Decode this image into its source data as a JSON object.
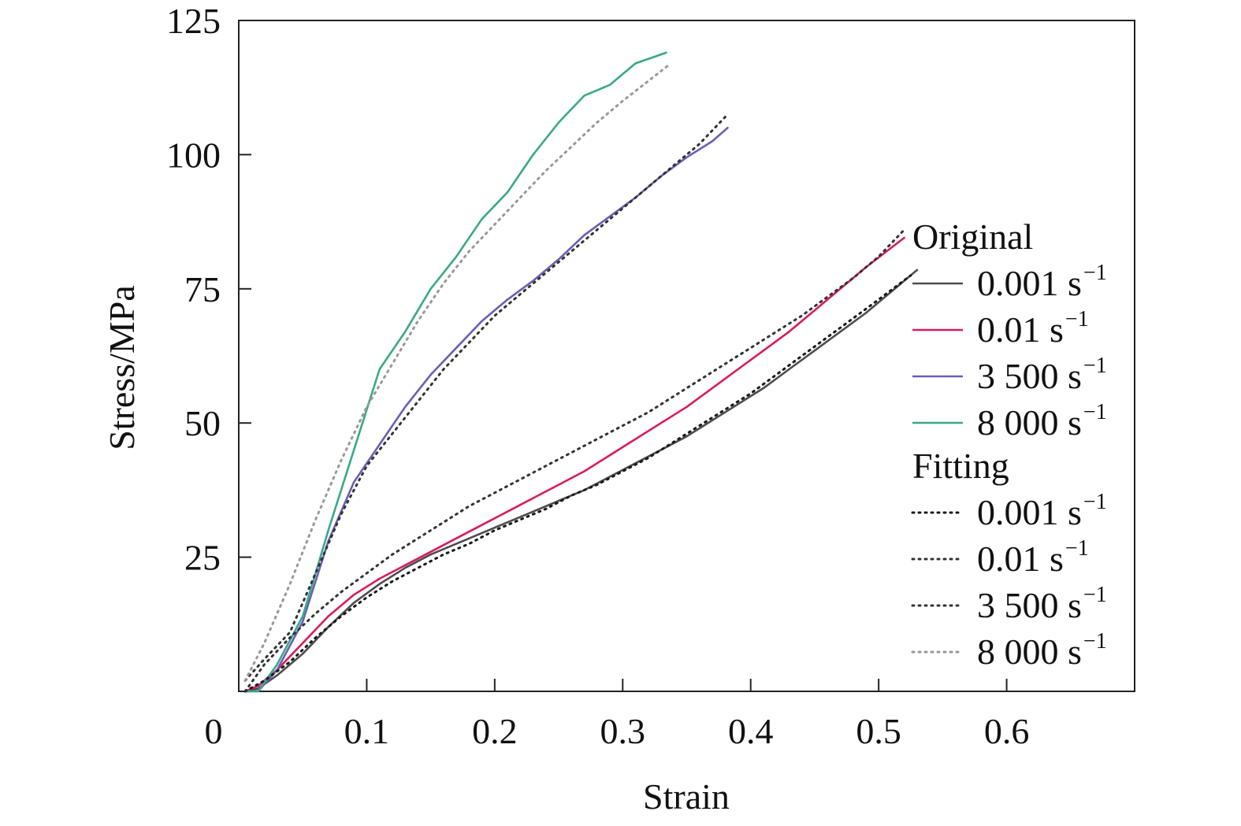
{
  "chart_data": {
    "type": "line",
    "xlabel": "Strain",
    "ylabel": "Stress/MPa",
    "xlim": [
      0,
      0.7
    ],
    "ylim": [
      0,
      125
    ],
    "x_ticks": [
      "0",
      "0.1",
      "0.2",
      "0.3",
      "0.4",
      "0.5",
      "0.6"
    ],
    "x_tick_values": [
      0,
      0.1,
      0.2,
      0.3,
      0.4,
      0.5,
      0.6
    ],
    "y_ticks": [
      "25",
      "50",
      "75",
      "100",
      "125"
    ],
    "y_tick_values": [
      25,
      50,
      75,
      100,
      125
    ],
    "grid": false,
    "legend_position": "right",
    "legend": {
      "original_title": "Original",
      "fitting_title": "Fitting",
      "original_entries": [
        {
          "text": "0.001 s",
          "sup": "−1"
        },
        {
          "text": "0.01 s",
          "sup": "−1"
        },
        {
          "text": "3 500 s",
          "sup": "−1"
        },
        {
          "text": "8 000 s",
          "sup": "−1"
        }
      ],
      "fitting_entries": [
        {
          "text": "0.001 s",
          "sup": "−1"
        },
        {
          "text": "0.01 s",
          "sup": "−1"
        },
        {
          "text": "3 500 s",
          "sup": "−1"
        },
        {
          "text": "8 000 s",
          "sup": "−1"
        }
      ]
    },
    "series": [
      {
        "group": "Original",
        "rate": "0.001 s−1",
        "style": "solid",
        "color": "#4d4d4d",
        "x": [
          0.005,
          0.015,
          0.03,
          0.05,
          0.07,
          0.09,
          0.11,
          0.13,
          0.15,
          0.17,
          0.19,
          0.21,
          0.23,
          0.25,
          0.27,
          0.29,
          0.31,
          0.33,
          0.35,
          0.37,
          0.39,
          0.41,
          0.43,
          0.45,
          0.47,
          0.49,
          0.51,
          0.53
        ],
        "y": [
          0,
          0.5,
          3,
          7,
          12,
          16.5,
          20,
          23,
          25.5,
          27.5,
          29.5,
          31.5,
          33.5,
          35.5,
          37.5,
          40,
          42.5,
          45,
          47.5,
          50.5,
          53.5,
          56.5,
          60,
          63.5,
          67,
          70.5,
          74.5,
          78.5
        ]
      },
      {
        "group": "Original",
        "rate": "0.01 s−1",
        "style": "solid",
        "color": "#d81b60",
        "x": [
          0.005,
          0.015,
          0.03,
          0.05,
          0.07,
          0.09,
          0.11,
          0.13,
          0.15,
          0.17,
          0.19,
          0.21,
          0.23,
          0.25,
          0.27,
          0.29,
          0.31,
          0.33,
          0.35,
          0.37,
          0.39,
          0.41,
          0.43,
          0.45,
          0.47,
          0.49,
          0.52
        ],
        "y": [
          0,
          1,
          4,
          9,
          14,
          18,
          21,
          23.5,
          26,
          28.5,
          31,
          33.5,
          36,
          38.5,
          41,
          44,
          47,
          50,
          53,
          56.5,
          60,
          63.5,
          67,
          71,
          75,
          79,
          84.5
        ]
      },
      {
        "group": "Original",
        "rate": "3 500 s−1",
        "style": "solid",
        "color": "#6a5fb5",
        "x": [
          0.005,
          0.015,
          0.03,
          0.05,
          0.07,
          0.09,
          0.11,
          0.13,
          0.15,
          0.17,
          0.19,
          0.21,
          0.23,
          0.25,
          0.27,
          0.29,
          0.31,
          0.33,
          0.35,
          0.37,
          0.382
        ],
        "y": [
          0,
          0,
          4,
          13,
          28,
          39,
          46,
          53,
          59,
          64,
          69,
          73,
          76.5,
          80.5,
          85,
          88.5,
          92,
          96,
          99.5,
          102.5,
          105
        ]
      },
      {
        "group": "Original",
        "rate": "8 000 s−1",
        "style": "solid",
        "color": "#3aa88a",
        "x": [
          0.005,
          0.015,
          0.03,
          0.05,
          0.07,
          0.09,
          0.11,
          0.13,
          0.15,
          0.17,
          0.19,
          0.21,
          0.23,
          0.25,
          0.27,
          0.29,
          0.31,
          0.334
        ],
        "y": [
          0,
          0,
          5,
          14,
          30,
          45,
          60,
          67,
          75,
          81,
          88,
          93,
          100,
          106,
          111,
          113,
          117,
          119
        ]
      },
      {
        "group": "Fitting",
        "rate": "0.001 s−1",
        "style": "dotted",
        "color": "#1a1a1a",
        "x": [
          0.005,
          0.02,
          0.04,
          0.06,
          0.08,
          0.1,
          0.12,
          0.14,
          0.16,
          0.18,
          0.2,
          0.22,
          0.24,
          0.26,
          0.28,
          0.3,
          0.32,
          0.34,
          0.36,
          0.38,
          0.4,
          0.42,
          0.44,
          0.46,
          0.48,
          0.5,
          0.525
        ],
        "y": [
          0,
          2,
          5.5,
          10,
          14,
          17.5,
          20.5,
          23,
          25.5,
          27.5,
          30,
          32,
          34,
          36.5,
          38.5,
          41,
          43.5,
          46.5,
          49.5,
          52.5,
          55.5,
          59,
          62.5,
          66,
          69.5,
          73,
          77.5
        ]
      },
      {
        "group": "Fitting",
        "rate": "0.01 s−1",
        "style": "dotted",
        "color": "#333333",
        "x": [
          0.005,
          0.02,
          0.04,
          0.06,
          0.08,
          0.1,
          0.12,
          0.14,
          0.16,
          0.18,
          0.2,
          0.22,
          0.24,
          0.26,
          0.28,
          0.3,
          0.32,
          0.34,
          0.36,
          0.38,
          0.4,
          0.42,
          0.44,
          0.46,
          0.48,
          0.5,
          0.52
        ],
        "y": [
          0,
          5,
          10,
          14.5,
          18.5,
          22,
          25.5,
          28.5,
          31.5,
          34.5,
          37,
          39.5,
          42,
          44.5,
          47,
          49.5,
          52,
          55,
          58,
          61,
          64,
          67,
          70,
          73.5,
          77,
          81,
          86
        ]
      },
      {
        "group": "Fitting",
        "rate": "3 500 s−1",
        "style": "dotted",
        "color": "#333333",
        "x": [
          0.005,
          0.02,
          0.04,
          0.06,
          0.08,
          0.1,
          0.12,
          0.14,
          0.16,
          0.18,
          0.2,
          0.22,
          0.24,
          0.26,
          0.28,
          0.3,
          0.32,
          0.34,
          0.36,
          0.382
        ],
        "y": [
          2,
          6,
          11,
          22,
          33,
          42,
          48,
          54,
          60,
          65,
          70,
          74,
          78,
          82,
          86,
          90,
          94,
          98,
          102,
          107.5
        ]
      },
      {
        "group": "Fitting",
        "rate": "8 000 s−1",
        "style": "dotted",
        "color": "#999999",
        "x": [
          0.005,
          0.02,
          0.04,
          0.06,
          0.08,
          0.1,
          0.12,
          0.14,
          0.16,
          0.18,
          0.2,
          0.22,
          0.24,
          0.26,
          0.28,
          0.3,
          0.335
        ],
        "y": [
          2,
          9,
          20,
          32,
          43,
          53,
          61,
          69,
          76,
          82,
          87,
          92,
          97,
          101.5,
          106,
          110,
          116.5
        ]
      }
    ]
  }
}
